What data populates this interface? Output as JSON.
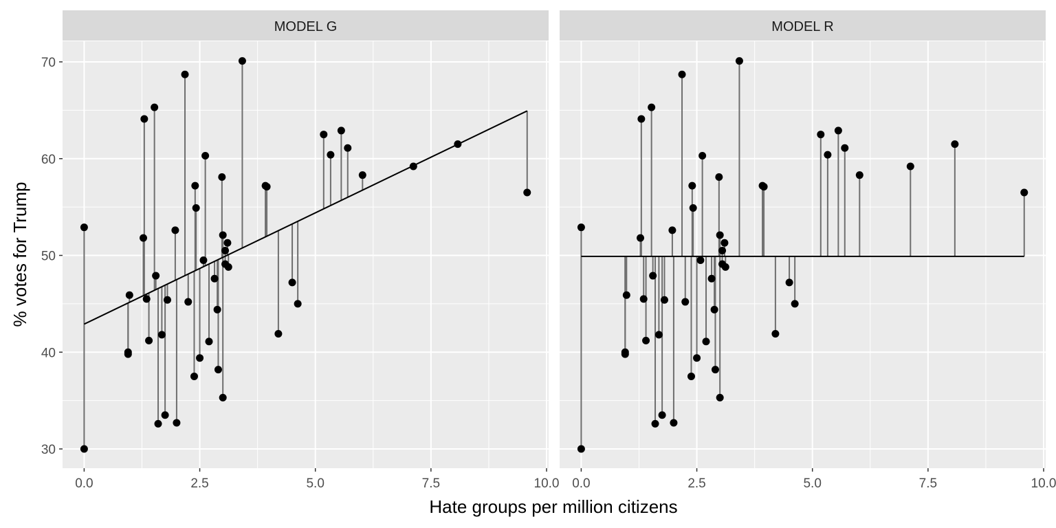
{
  "chart_data": {
    "type": "scatter",
    "xlabel": "Hate groups per million citizens",
    "ylabel": "% votes for Trump",
    "xlim": [
      0,
      10
    ],
    "ylim": [
      30,
      70
    ],
    "x_ticks": [
      0,
      2.5,
      5,
      7.5,
      10
    ],
    "x_tick_labels": [
      "0.0",
      "2.5",
      "5.0",
      "7.5",
      "10.0"
    ],
    "y_ticks": [
      30,
      40,
      50,
      60,
      70
    ],
    "y_tick_labels": [
      "30",
      "40",
      "50",
      "60",
      "70"
    ],
    "grid": true,
    "panels": [
      {
        "name": "MODEL G",
        "fit": {
          "intercept": 42.9,
          "slope": 2.3
        }
      },
      {
        "name": "MODEL R",
        "fit": {
          "intercept": 49.9,
          "slope": 0
        }
      }
    ],
    "points": [
      {
        "x": 0.0,
        "y": 52.9
      },
      {
        "x": 0.0,
        "y": 30.0
      },
      {
        "x": 0.95,
        "y": 40.0
      },
      {
        "x": 0.95,
        "y": 39.8
      },
      {
        "x": 0.98,
        "y": 45.9
      },
      {
        "x": 1.28,
        "y": 51.8
      },
      {
        "x": 1.3,
        "y": 64.1
      },
      {
        "x": 1.35,
        "y": 45.5
      },
      {
        "x": 1.4,
        "y": 41.2
      },
      {
        "x": 1.52,
        "y": 65.3
      },
      {
        "x": 1.55,
        "y": 47.9
      },
      {
        "x": 1.6,
        "y": 32.6
      },
      {
        "x": 1.68,
        "y": 41.8
      },
      {
        "x": 1.75,
        "y": 33.5
      },
      {
        "x": 1.8,
        "y": 45.4
      },
      {
        "x": 1.97,
        "y": 52.6
      },
      {
        "x": 2.0,
        "y": 32.7
      },
      {
        "x": 2.18,
        "y": 68.7
      },
      {
        "x": 2.25,
        "y": 45.2
      },
      {
        "x": 2.38,
        "y": 37.5
      },
      {
        "x": 2.4,
        "y": 57.2
      },
      {
        "x": 2.42,
        "y": 54.9
      },
      {
        "x": 2.5,
        "y": 39.4
      },
      {
        "x": 2.58,
        "y": 49.5
      },
      {
        "x": 2.62,
        "y": 60.3
      },
      {
        "x": 2.7,
        "y": 41.1
      },
      {
        "x": 2.82,
        "y": 47.6
      },
      {
        "x": 2.88,
        "y": 44.4
      },
      {
        "x": 2.9,
        "y": 38.2
      },
      {
        "x": 2.98,
        "y": 58.1
      },
      {
        "x": 3.0,
        "y": 35.3
      },
      {
        "x": 3.0,
        "y": 52.1
      },
      {
        "x": 3.05,
        "y": 50.5
      },
      {
        "x": 3.05,
        "y": 49.1
      },
      {
        "x": 3.1,
        "y": 51.3
      },
      {
        "x": 3.12,
        "y": 48.8
      },
      {
        "x": 3.42,
        "y": 70.1
      },
      {
        "x": 3.92,
        "y": 57.2
      },
      {
        "x": 3.95,
        "y": 57.1
      },
      {
        "x": 4.2,
        "y": 41.9
      },
      {
        "x": 4.5,
        "y": 47.2
      },
      {
        "x": 4.62,
        "y": 45.0
      },
      {
        "x": 5.18,
        "y": 62.5
      },
      {
        "x": 5.33,
        "y": 60.4
      },
      {
        "x": 5.56,
        "y": 62.9
      },
      {
        "x": 5.7,
        "y": 61.1
      },
      {
        "x": 6.02,
        "y": 58.3
      },
      {
        "x": 7.12,
        "y": 59.2
      },
      {
        "x": 8.08,
        "y": 61.5
      },
      {
        "x": 9.58,
        "y": 56.5
      }
    ]
  }
}
